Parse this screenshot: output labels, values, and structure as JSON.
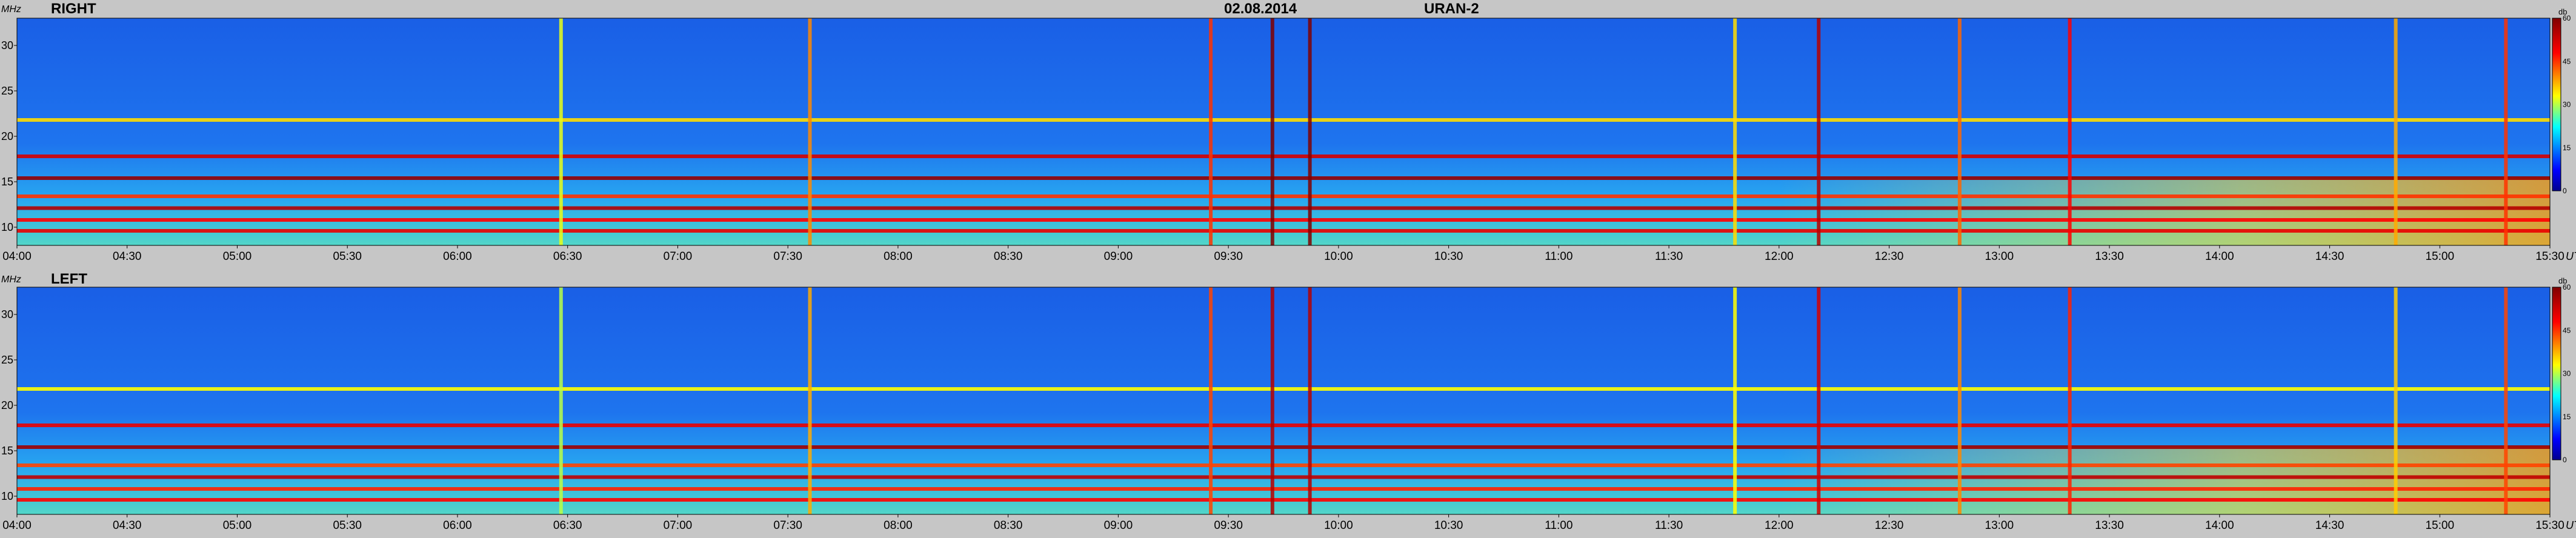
{
  "header": {
    "date": "02.08.2014",
    "instrument": "URAN-2"
  },
  "chart_data": [
    {
      "type": "heatmap",
      "panel_label": "RIGHT",
      "y_unit": "MHz",
      "x_unit": "UT",
      "yticks": [
        "10",
        "15",
        "20",
        "25",
        "30"
      ],
      "ylim": [
        8,
        33
      ],
      "xticks": [
        "04:00",
        "04:30",
        "05:00",
        "05:30",
        "06:00",
        "06:30",
        "07:00",
        "07:30",
        "08:00",
        "08:30",
        "09:00",
        "09:30",
        "10:00",
        "10:30",
        "11:00",
        "11:30",
        "12:00",
        "12:30",
        "13:00",
        "13:30",
        "14:00",
        "14:30",
        "15:00",
        "15:30"
      ],
      "xlim_hours": [
        4.0,
        15.5
      ],
      "colorbar": {
        "unit": "db",
        "ticks": [
          "0",
          "15",
          "30",
          "45",
          "60"
        ],
        "range": [
          0,
          60
        ]
      },
      "horizontal_bands_mhz": [
        {
          "f": 9.6,
          "level": 50
        },
        {
          "f": 10.8,
          "level": 48
        },
        {
          "f": 12.1,
          "level": 55
        },
        {
          "f": 13.4,
          "level": 45
        },
        {
          "f": 15.4,
          "level": 58
        },
        {
          "f": 17.8,
          "level": 52
        },
        {
          "f": 21.8,
          "level": 35
        }
      ],
      "bursts_hours": [
        {
          "t": 6.47,
          "level": 32
        },
        {
          "t": 7.6,
          "level": 40
        },
        {
          "t": 9.42,
          "level": 45
        },
        {
          "t": 9.7,
          "level": 60
        },
        {
          "t": 9.87,
          "level": 60
        },
        {
          "t": 11.8,
          "level": 35
        },
        {
          "t": 12.18,
          "level": 55
        },
        {
          "t": 12.82,
          "level": 42
        },
        {
          "t": 13.32,
          "level": 48
        },
        {
          "t": 14.8,
          "level": 38
        },
        {
          "t": 15.3,
          "level": 45
        }
      ]
    },
    {
      "type": "heatmap",
      "panel_label": "LEFT",
      "y_unit": "MHz",
      "x_unit": "UT",
      "yticks": [
        "10",
        "15",
        "20",
        "25",
        "30"
      ],
      "ylim": [
        8,
        33
      ],
      "xticks": [
        "04:00",
        "04:30",
        "05:00",
        "05:30",
        "06:00",
        "06:30",
        "07:00",
        "07:30",
        "08:00",
        "08:30",
        "09:00",
        "09:30",
        "10:00",
        "10:30",
        "11:00",
        "11:30",
        "12:00",
        "12:30",
        "13:00",
        "13:30",
        "14:00",
        "14:30",
        "15:00",
        "15:30"
      ],
      "xlim_hours": [
        4.0,
        15.5
      ],
      "colorbar": {
        "unit": "db",
        "ticks": [
          "0",
          "15",
          "30",
          "45",
          "60"
        ],
        "range": [
          0,
          60
        ]
      },
      "horizontal_bands_mhz": [
        {
          "f": 9.6,
          "level": 48
        },
        {
          "f": 10.8,
          "level": 46
        },
        {
          "f": 12.1,
          "level": 54
        },
        {
          "f": 13.4,
          "level": 44
        },
        {
          "f": 15.4,
          "level": 57
        },
        {
          "f": 17.8,
          "level": 50
        },
        {
          "f": 21.8,
          "level": 33
        }
      ],
      "bursts_hours": [
        {
          "t": 6.47,
          "level": 30
        },
        {
          "t": 7.6,
          "level": 38
        },
        {
          "t": 9.42,
          "level": 44
        },
        {
          "t": 9.7,
          "level": 55
        },
        {
          "t": 9.87,
          "level": 55
        },
        {
          "t": 11.8,
          "level": 33
        },
        {
          "t": 12.18,
          "level": 52
        },
        {
          "t": 12.82,
          "level": 40
        },
        {
          "t": 13.32,
          "level": 46
        },
        {
          "t": 14.8,
          "level": 36
        },
        {
          "t": 15.3,
          "level": 44
        }
      ]
    }
  ]
}
